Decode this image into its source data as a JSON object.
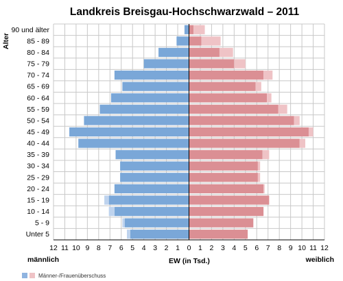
{
  "chart_data": {
    "type": "bar",
    "orientation": "horizontal-population-pyramid",
    "title": "Landkreis Breisgau-Hochschwarzwald – 2011",
    "ylabel": "Alter",
    "xlabel": "EW (in Tsd.)",
    "left_label": "männlich",
    "right_label": "weiblich",
    "xlim": [
      -12,
      12
    ],
    "x_tick_labels": [
      "12",
      "11",
      "10",
      "9",
      "8",
      "7",
      "6",
      "5",
      "4",
      "3",
      "2",
      "1",
      "0",
      "1",
      "2",
      "3",
      "4",
      "5",
      "6",
      "7",
      "8",
      "9",
      "10",
      "11",
      "12"
    ],
    "grid": true,
    "categories": [
      "90 und älter",
      "85 - 89",
      "80 - 84",
      "75 - 79",
      "70 - 74",
      "65 - 69",
      "60 - 64",
      "55 - 59",
      "50 - 54",
      "45 - 49",
      "40 - 44",
      "35 - 39",
      "30 - 34",
      "25 - 29",
      "20 - 24",
      "15 - 19",
      "10 - 14",
      "5 - 9",
      "Unter 5"
    ],
    "series": [
      {
        "name": "männlich",
        "color": "#7aa7d8",
        "surplus_color": "#bed3ee",
        "values": [
          0.4,
          1.1,
          2.7,
          4.0,
          6.6,
          5.9,
          6.9,
          7.9,
          9.3,
          10.6,
          9.8,
          6.5,
          6.1,
          6.1,
          6.6,
          7.5,
          7.1,
          5.9,
          5.5
        ]
      },
      {
        "name": "weiblich",
        "color": "#db8f94",
        "surplus_color": "#efc3c6",
        "values": [
          1.4,
          2.8,
          3.9,
          5.0,
          7.4,
          6.4,
          7.3,
          8.7,
          9.8,
          11.0,
          10.3,
          7.1,
          6.3,
          6.3,
          6.7,
          7.1,
          6.6,
          5.7,
          5.2
        ]
      }
    ],
    "legend": {
      "label": "Männer-/Frauenüberschuss",
      "position": "bottom-left"
    }
  },
  "colors": {
    "grid": "#c8c8c8",
    "axis": "#000000"
  }
}
